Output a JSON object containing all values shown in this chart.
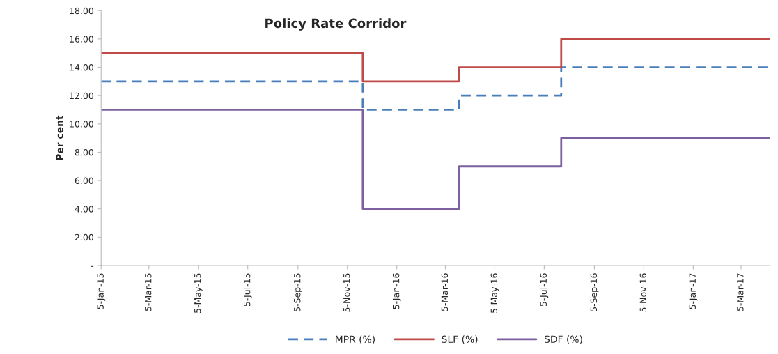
{
  "chart_data": {
    "type": "step",
    "title": "Policy Rate Corridor",
    "ylabel": "Per cent",
    "series": [
      {
        "name": "MPR (%)",
        "color": "#4a7ebb",
        "line_style": "dashed",
        "x": [
          "2015-01-05",
          "2015-11-24",
          "2016-03-22",
          "2016-07-26",
          "2017-04-10"
        ],
        "values": [
          13,
          11,
          12,
          14,
          14
        ]
      },
      {
        "name": "SLF (%)",
        "color": "#be4b48",
        "line_style": "solid",
        "x": [
          "2015-01-05",
          "2015-11-24",
          "2016-03-22",
          "2016-07-26",
          "2017-04-10"
        ],
        "values": [
          15,
          13,
          14,
          16,
          16
        ]
      },
      {
        "name": "SDF (%)",
        "color": "#7d60a0",
        "line_style": "solid",
        "x": [
          "2015-01-05",
          "2015-11-24",
          "2016-03-22",
          "2016-07-26",
          "2017-04-10"
        ],
        "values": [
          11,
          4,
          7,
          9,
          9
        ]
      }
    ],
    "xlim": [
      "2015-01-05",
      "2017-04-10"
    ],
    "xticks": [
      {
        "value": "2015-01-05",
        "label": "5-Jan-15"
      },
      {
        "value": "2015-03-05",
        "label": "5-Mar-15"
      },
      {
        "value": "2015-05-05",
        "label": "5-May-15"
      },
      {
        "value": "2015-07-05",
        "label": "5-Jul-15"
      },
      {
        "value": "2015-09-05",
        "label": "5-Sep-15"
      },
      {
        "value": "2015-11-05",
        "label": "5-Nov-15"
      },
      {
        "value": "2016-01-05",
        "label": "5-Jan-16"
      },
      {
        "value": "2016-03-05",
        "label": "5-Mar-16"
      },
      {
        "value": "2016-05-05",
        "label": "5-May-16"
      },
      {
        "value": "2016-07-05",
        "label": "5-Jul-16"
      },
      {
        "value": "2016-09-05",
        "label": "5-Sep-16"
      },
      {
        "value": "2016-11-05",
        "label": "5-Nov-16"
      },
      {
        "value": "2017-01-05",
        "label": "5-Jan-17"
      },
      {
        "value": "2017-03-05",
        "label": "5-Mar-17"
      }
    ],
    "ylim": [
      0,
      18
    ],
    "yticks": [
      {
        "value": 0,
        "label": "-"
      },
      {
        "value": 2,
        "label": "2.00"
      },
      {
        "value": 4,
        "label": "4.00"
      },
      {
        "value": 6,
        "label": "6.00"
      },
      {
        "value": 8,
        "label": "8.00"
      },
      {
        "value": 10,
        "label": "10.00"
      },
      {
        "value": 12,
        "label": "12.00"
      },
      {
        "value": 14,
        "label": "14.00"
      },
      {
        "value": 16,
        "label": "16.00"
      },
      {
        "value": 18,
        "label": "18.00"
      }
    ],
    "grid": false,
    "legend": "bottom",
    "marker": "none"
  }
}
